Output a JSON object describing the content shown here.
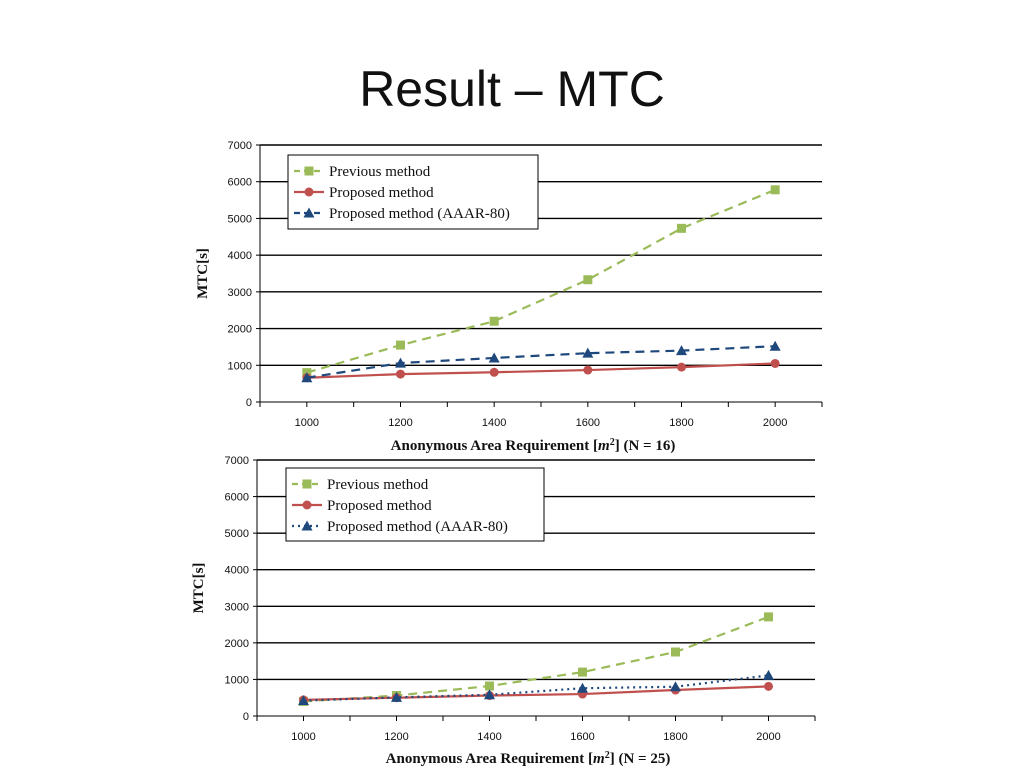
{
  "slide": {
    "title": "Result – MTC"
  },
  "colors": {
    "previous": "#9bbb59",
    "proposed": "#c0504d",
    "aaar": "#1f497d"
  },
  "chart_data": [
    {
      "type": "line",
      "x": [
        1000,
        1200,
        1400,
        1600,
        1800,
        2000
      ],
      "series": [
        {
          "name": "Previous method",
          "values": [
            800,
            1550,
            2200,
            3330,
            4730,
            5780
          ],
          "style": "dashed",
          "marker": "square",
          "color": "#9bbb59"
        },
        {
          "name": "Proposed  method",
          "values": [
            660,
            760,
            810,
            870,
            950,
            1050
          ],
          "style": "solid",
          "marker": "circle",
          "color": "#c0504d"
        },
        {
          "name": "Proposed method (AAAR-80)",
          "values": [
            660,
            1060,
            1200,
            1330,
            1400,
            1520
          ],
          "style": "dashed",
          "marker": "triangle",
          "color": "#1f497d"
        }
      ],
      "ylabel": "MTC[s]",
      "xlabel_prefix": "Anonymous Area Requirement [",
      "xlabel_var": "m",
      "xlabel_sup": "2",
      "xlabel_suffix": "] (N = 16)",
      "ylim": [
        0,
        7000
      ],
      "yticks": [
        "0",
        "1000",
        "2000",
        "3000",
        "4000",
        "5000",
        "6000",
        "7000"
      ],
      "xticks": [
        "1000",
        "1200",
        "1400",
        "1600",
        "1800",
        "2000"
      ],
      "grid": true,
      "legend_position": "top-left"
    },
    {
      "type": "line",
      "x": [
        1000,
        1200,
        1400,
        1600,
        1800,
        2000
      ],
      "series": [
        {
          "name": "Previous method",
          "values": [
            400,
            560,
            820,
            1200,
            1750,
            2710
          ],
          "style": "dashed",
          "marker": "square",
          "color": "#9bbb59"
        },
        {
          "name": "Proposed  method",
          "values": [
            440,
            500,
            560,
            600,
            710,
            810
          ],
          "style": "solid",
          "marker": "circle",
          "color": "#c0504d"
        },
        {
          "name": "Proposed method (AAAR-80)",
          "values": [
            420,
            510,
            580,
            760,
            800,
            1110
          ],
          "style": "dotted",
          "marker": "triangle",
          "color": "#1f497d"
        }
      ],
      "ylabel": "MTC[s]",
      "xlabel_prefix": "Anonymous Area Requirement [",
      "xlabel_var": "m",
      "xlabel_sup": "2",
      "xlabel_suffix": "] (N = 25)",
      "ylim": [
        0,
        7000
      ],
      "yticks": [
        "0",
        "1000",
        "2000",
        "3000",
        "4000",
        "5000",
        "6000",
        "7000"
      ],
      "xticks": [
        "1000",
        "1200",
        "1400",
        "1600",
        "1800",
        "2000"
      ],
      "grid": true,
      "legend_position": "top-left"
    }
  ]
}
